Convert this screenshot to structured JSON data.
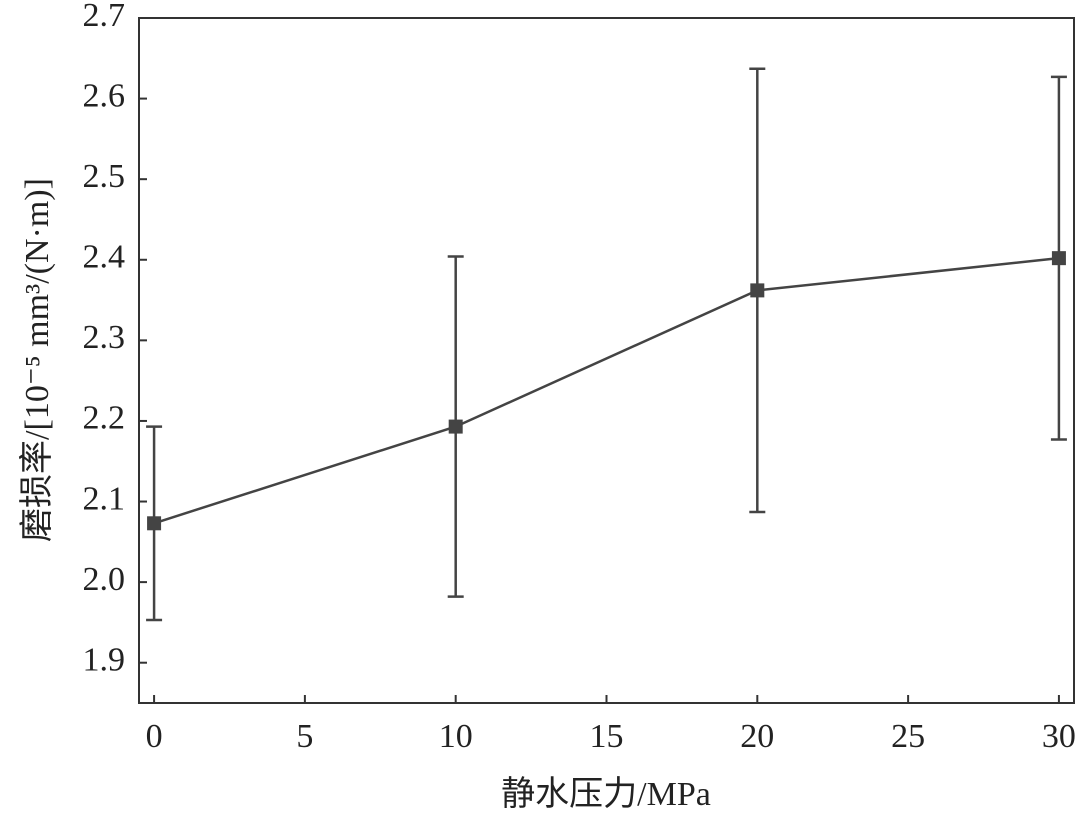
{
  "chart_data": {
    "type": "line",
    "x_label": "静水压力/MPa",
    "y_label": "磨损率/[10⁻⁵ mm³/(N·m)]",
    "x": [
      0,
      10,
      20,
      30
    ],
    "series": [
      {
        "color": "#444444",
        "values": [
          2.073,
          2.193,
          2.362,
          2.402
        ],
        "errors": [
          0.12,
          0.211,
          0.275,
          0.225
        ]
      }
    ],
    "xlim": [
      -0.5,
      30.5
    ],
    "xticks": [
      0,
      5,
      10,
      15,
      20,
      25,
      30
    ],
    "ylim": [
      1.85,
      2.7
    ],
    "yticks": [
      1.9,
      {
        "value": 2,
        "label": "2.0"
      },
      2.1,
      2.2,
      2.3,
      2.4,
      2.5,
      2.6,
      2.7
    ]
  }
}
